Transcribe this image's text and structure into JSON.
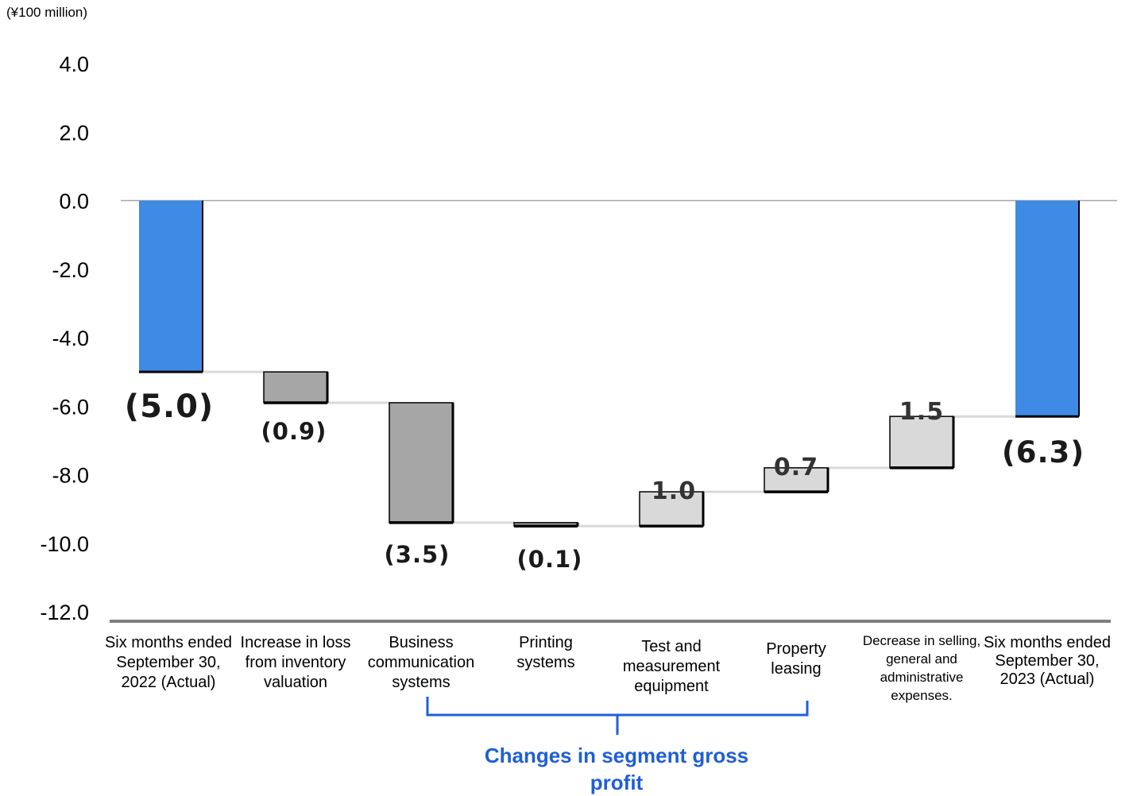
{
  "unit_label": "(¥100 million)",
  "group_label": "Changes in segment gross profit",
  "colors": {
    "actual": "#3f8ae5",
    "decrease": "#a6a6a6",
    "increase": "#d9d9d9",
    "connector": "#d9d9d9",
    "axis": "#7f7f7f",
    "bracket": "#1f5fd6"
  },
  "chart_data": {
    "type": "waterfall",
    "ylabel": "",
    "ylim": [
      -12.0,
      4.0
    ],
    "yticks": [
      "4.0",
      "2.0",
      "0.0",
      "-2.0",
      "-4.0",
      "-6.0",
      "-8.0",
      "-10.0",
      "-12.0"
    ],
    "categories": [
      [
        "Six months ended",
        "September 30,",
        "2022 (Actual)"
      ],
      [
        "Increase in loss",
        "from inventory",
        "valuation"
      ],
      [
        "Business",
        "communication",
        "systems"
      ],
      [
        "Printing",
        "systems"
      ],
      [
        "Test and",
        "measurement",
        "equipment"
      ],
      [
        "Property",
        "leasing"
      ],
      [
        "Decrease in selling,",
        "general and",
        "administrative",
        "expenses."
      ],
      [
        "Six months ended",
        "September 30,",
        "2023 (Actual)"
      ]
    ],
    "values": [
      -5.0,
      -0.9,
      -3.5,
      -0.1,
      1.0,
      0.7,
      1.5,
      -6.3
    ],
    "kinds": [
      "total",
      "delta",
      "delta",
      "delta",
      "delta",
      "delta",
      "delta",
      "total"
    ],
    "data_labels": [
      "(5.0)",
      "(0.9)",
      "(3.5)",
      "(0.1)",
      "1.0",
      "0.7",
      "1.5",
      "(6.3)"
    ],
    "grid": false,
    "legend": "none"
  }
}
